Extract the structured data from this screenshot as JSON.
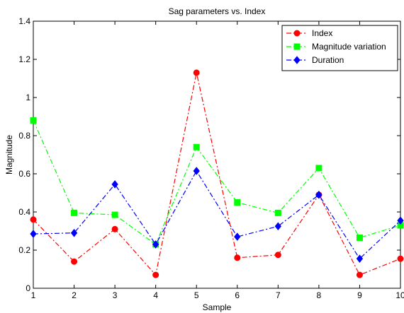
{
  "chart_data": {
    "type": "line",
    "title": "Sag parameters vs. Index",
    "xlabel": "Sample",
    "ylabel": "Magnitude",
    "x": [
      1,
      2,
      3,
      4,
      5,
      6,
      7,
      8,
      9,
      10
    ],
    "xlim": [
      1,
      10
    ],
    "ylim": [
      0,
      1.4
    ],
    "xticks": [
      "1",
      "2",
      "3",
      "4",
      "5",
      "6",
      "7",
      "8",
      "9",
      "10"
    ],
    "yticks": [
      "0",
      "0.2",
      "0.4",
      "0.6",
      "0.8",
      "1",
      "1.2",
      "1.4"
    ],
    "grid": false,
    "legend_position": "top-right",
    "series": [
      {
        "name": "Index",
        "color": "#ff0000",
        "marker": "circle",
        "line_style": "dash-dot",
        "values": [
          0.36,
          0.14,
          0.31,
          0.07,
          1.13,
          0.16,
          0.175,
          0.49,
          0.07,
          0.155
        ]
      },
      {
        "name": "Magnitude variation",
        "color": "#00ff00",
        "marker": "square",
        "line_style": "dash-dot",
        "values": [
          0.88,
          0.395,
          0.385,
          0.23,
          0.74,
          0.45,
          0.395,
          0.63,
          0.265,
          0.33
        ]
      },
      {
        "name": "Duration",
        "color": "#0000ff",
        "marker": "diamond",
        "line_style": "dash-dot",
        "values": [
          0.285,
          0.29,
          0.545,
          0.23,
          0.615,
          0.27,
          0.325,
          0.49,
          0.155,
          0.355
        ]
      }
    ]
  }
}
